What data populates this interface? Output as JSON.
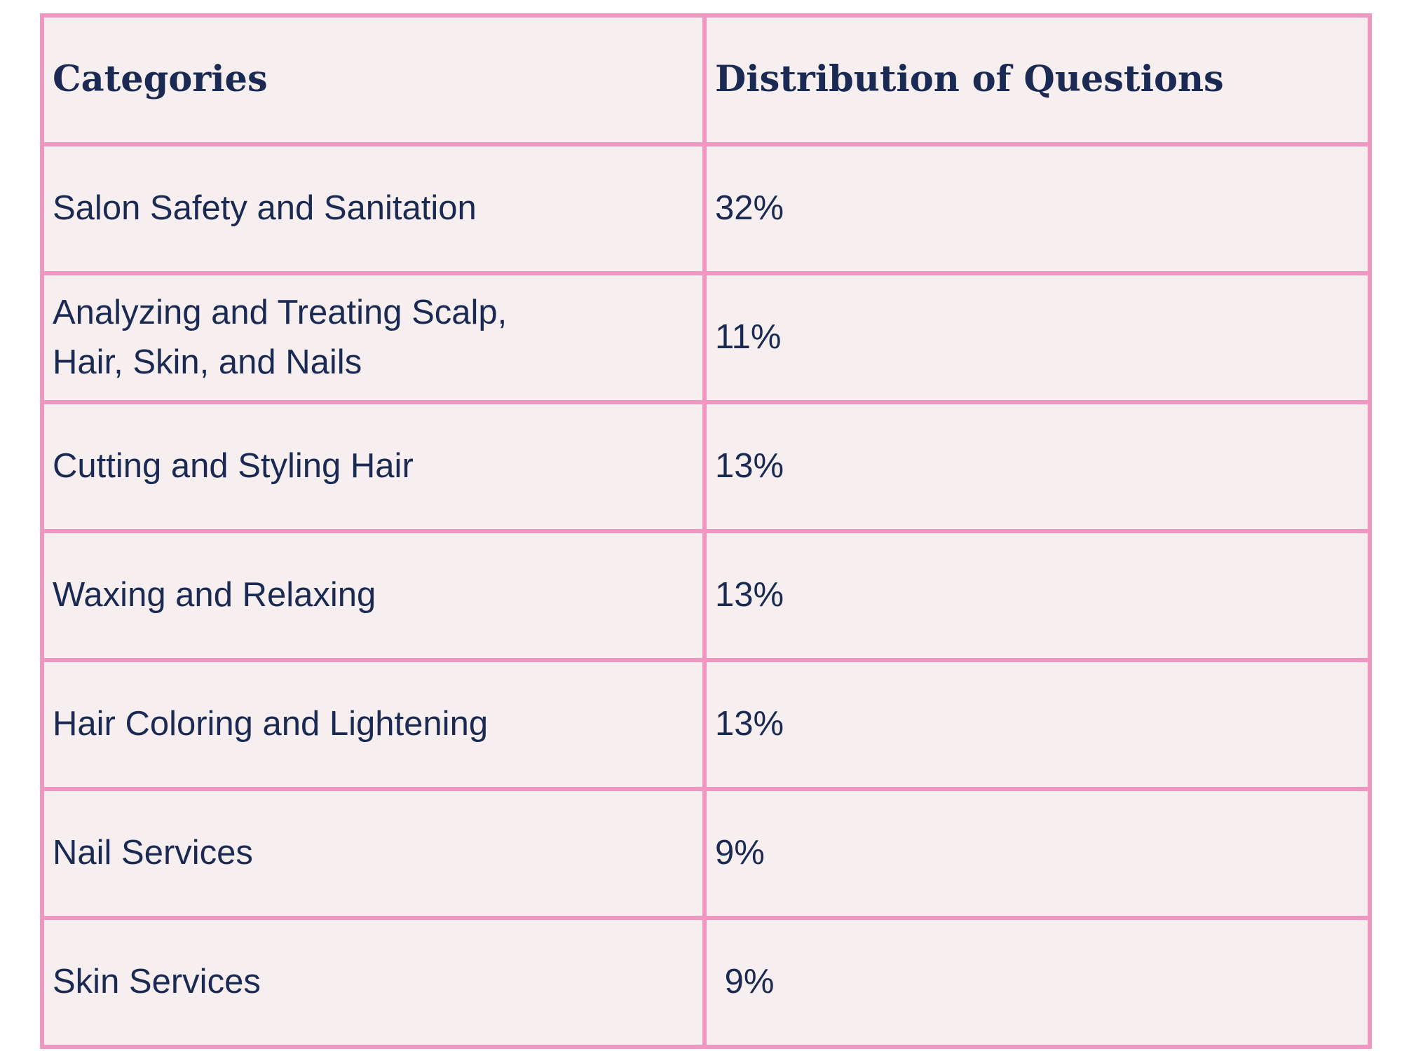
{
  "table": {
    "headers": [
      "Categories",
      "Distribution of Questions"
    ],
    "rows": [
      [
        "Salon Safety and Sanitation",
        "32%"
      ],
      [
        "Analyzing and Treating Scalp, Hair, Skin, and Nails",
        "11%"
      ],
      [
        "Cutting and Styling Hair",
        "13%"
      ],
      [
        "Waxing and Relaxing",
        "13%"
      ],
      [
        "Hair Coloring and Lightening",
        "13%"
      ],
      [
        "Nail Services",
        "9%"
      ],
      [
        "Skin Services",
        " 9%"
      ]
    ]
  },
  "colors": {
    "border": "#ef97c1",
    "cell_background": "#f6eeef",
    "text": "#1a2a52"
  }
}
